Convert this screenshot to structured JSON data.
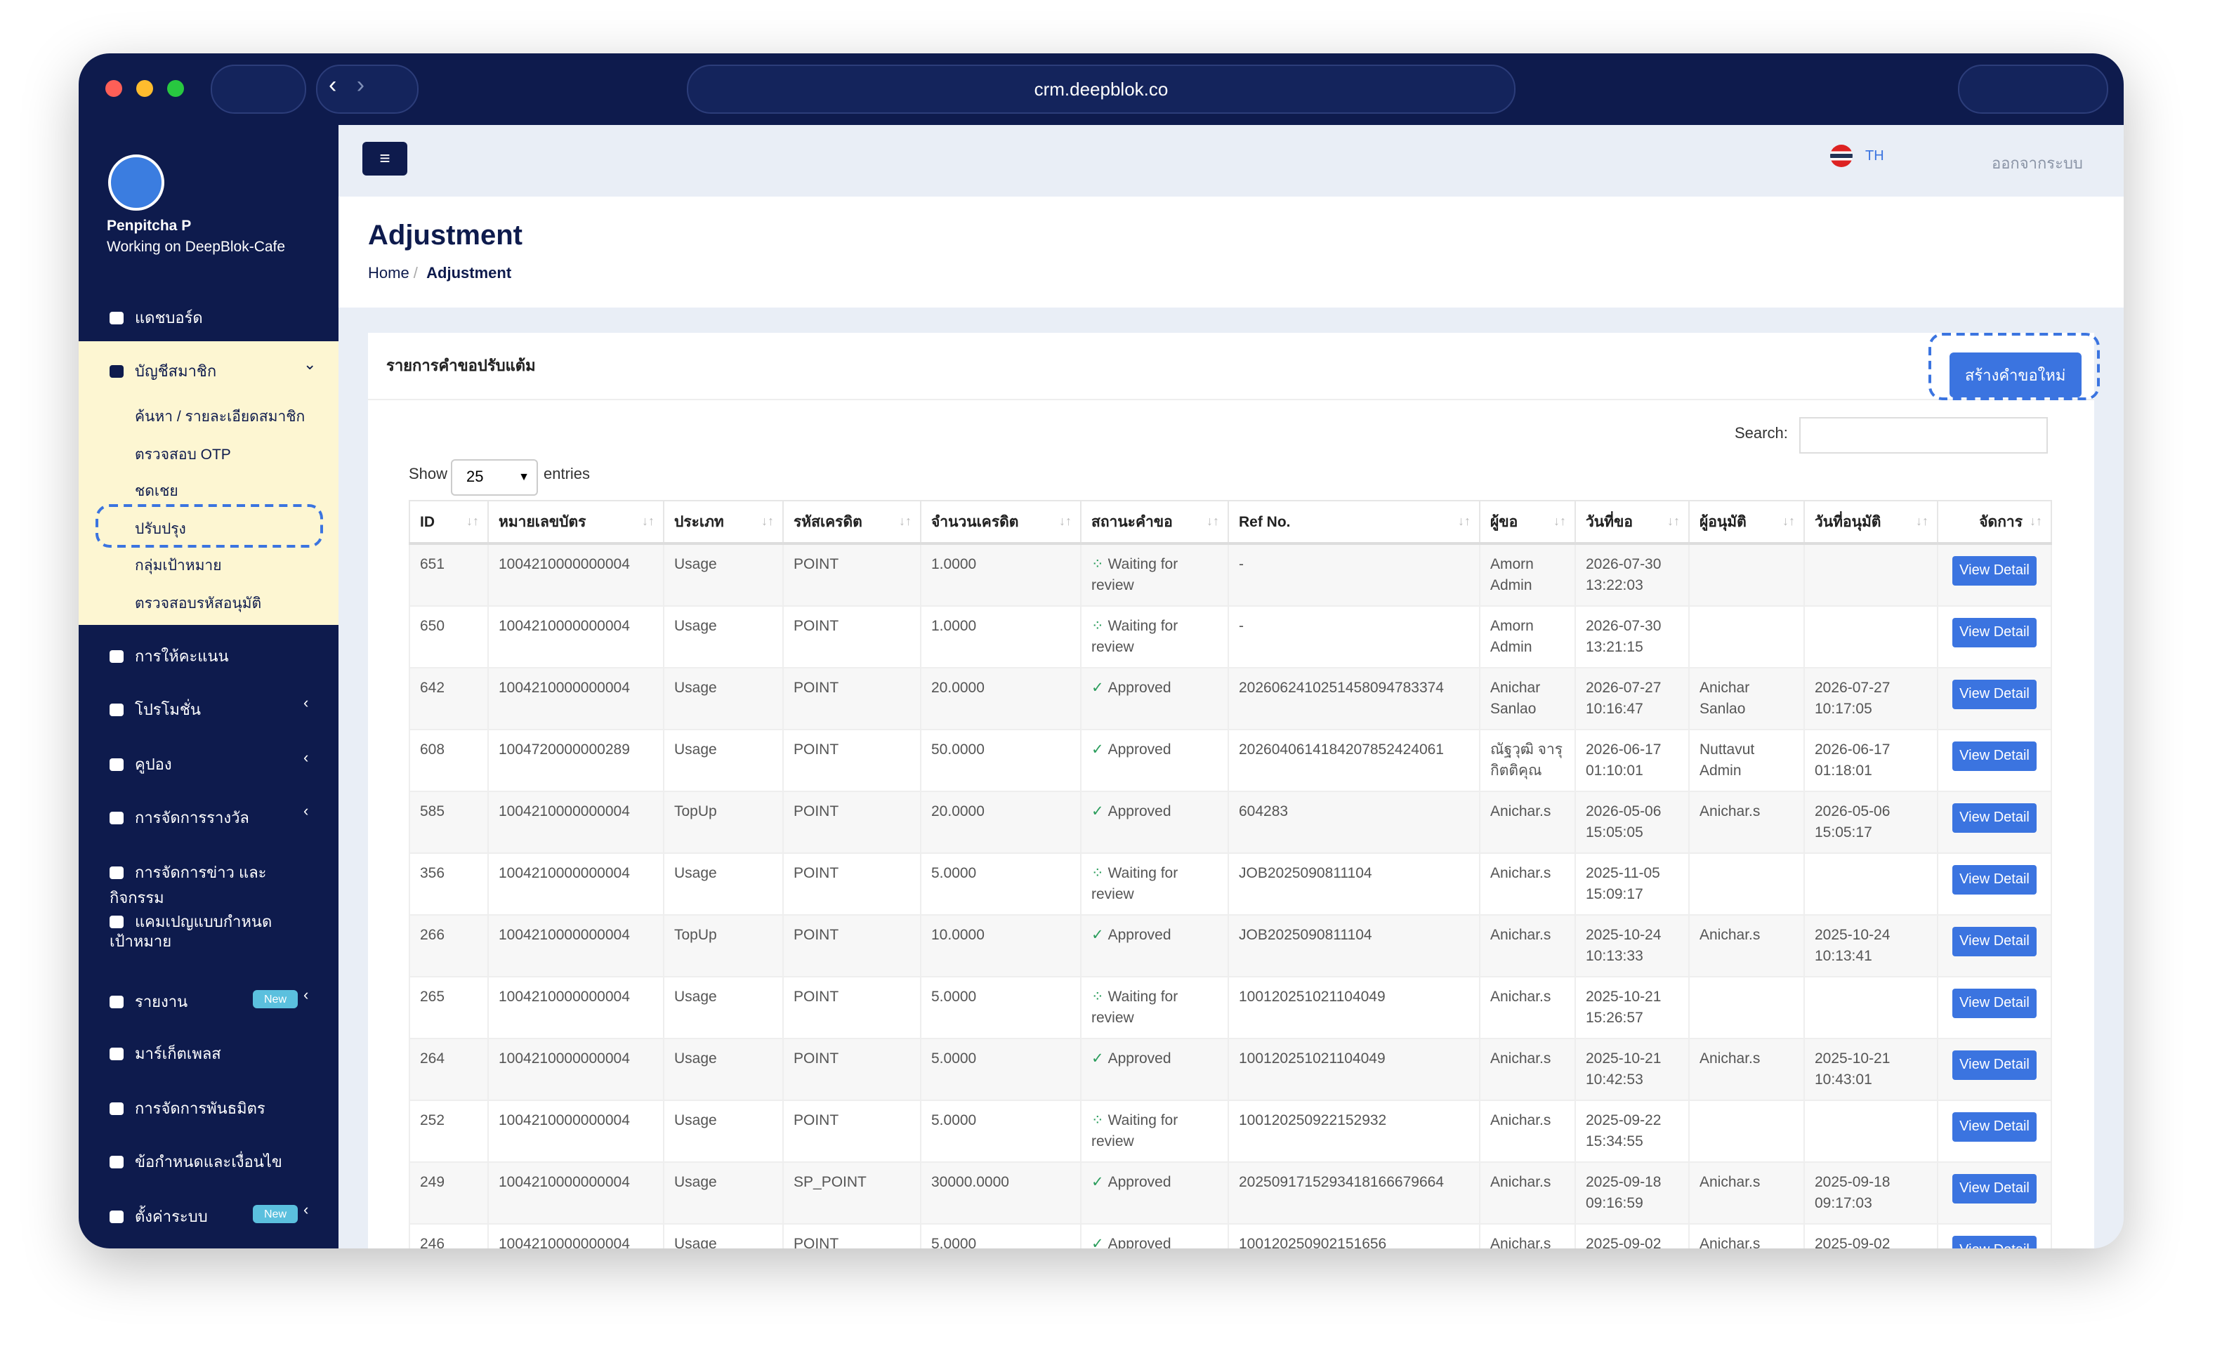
{
  "browser": {
    "url": "crm.deepblok.co"
  },
  "sidebar": {
    "user_name": "Penpitcha P",
    "workspace": "Working on DeepBlok-Cafe",
    "menu": [
      {
        "label": "แดชบอร์ด"
      },
      {
        "label": "บัญชีสมาชิก",
        "submenu": [
          "ค้นหา / รายละเอียดสมาชิก",
          "ตรวจสอบ OTP",
          "ชดเชย",
          "ปรับปรุง",
          "กลุ่มเป้าหมาย",
          "ตรวจสอบรหัสอนุมัติ"
        ]
      },
      {
        "label": "การให้คะแนน"
      },
      {
        "label": "โปรโมชั่น"
      },
      {
        "label": "คูปอง"
      },
      {
        "label": "การจัดการรางวัล"
      },
      {
        "label": "การจัดการข่าว และ กิจกรรม"
      },
      {
        "label": "แคมเปญแบบกำหนดเป้าหมาย"
      },
      {
        "label": "รายงาน",
        "badge": "New"
      },
      {
        "label": "มาร์เก็ตเพลส"
      },
      {
        "label": "การจัดการพันธมิตร"
      },
      {
        "label": "ข้อกำหนดและเงื่อนไข"
      },
      {
        "label": "ตั้งค่าระบบ",
        "badge": "New"
      }
    ]
  },
  "topbar": {
    "language": "TH",
    "logout": "ออกจากระบบ"
  },
  "header": {
    "title": "Adjustment",
    "breadcrumb": [
      "Home",
      "Adjustment"
    ]
  },
  "card": {
    "title": "รายการคำขอปรับแต้ม",
    "create_button": "สร้างคำขอใหม่",
    "search_label": "Search:",
    "show_label": "Show",
    "page_size": "25",
    "entries_label": "entries"
  },
  "table": {
    "columns": [
      "ID",
      "หมายเลขบัตร",
      "ประเภท",
      "รหัสเครดิต",
      "จำนวนเครดิต",
      "สถานะคำขอ",
      "Ref No.",
      "ผู้ขอ",
      "วันที่ขอ",
      "ผู้อนุมัติ",
      "วันที่อนุมัติ",
      "จัดการ"
    ],
    "action_label": "View Detail",
    "rows": [
      [
        "651",
        "1004210000000004",
        "Usage",
        "POINT",
        "1.0000",
        "Waiting for review",
        "-",
        "Amorn Admin",
        "2026-07-30 13:22:03",
        "",
        ""
      ],
      [
        "650",
        "1004210000000004",
        "Usage",
        "POINT",
        "1.0000",
        "Waiting for review",
        "-",
        "Amorn Admin",
        "2026-07-30 13:21:15",
        "",
        ""
      ],
      [
        "642",
        "1004210000000004",
        "Usage",
        "POINT",
        "20.0000",
        "Approved",
        "2026062410251458094783374",
        "Anichar Sanlao",
        "2026-07-27 10:16:47",
        "Anichar Sanlao",
        "2026-07-27 10:17:05"
      ],
      [
        "608",
        "1004720000000289",
        "Usage",
        "POINT",
        "50.0000",
        "Approved",
        "2026040614184207852424061",
        "ณัฐวุฒิ จารุกิตติคุณ",
        "2026-06-17 01:10:01",
        "Nuttavut Admin",
        "2026-06-17 01:18:01"
      ],
      [
        "585",
        "1004210000000004",
        "TopUp",
        "POINT",
        "20.0000",
        "Approved",
        "604283",
        "Anichar.s",
        "2026-05-06 15:05:05",
        "Anichar.s",
        "2026-05-06 15:05:17"
      ],
      [
        "356",
        "1004210000000004",
        "Usage",
        "POINT",
        "5.0000",
        "Waiting for review",
        "JOB2025090811104",
        "Anichar.s",
        "2025-11-05 15:09:17",
        "",
        ""
      ],
      [
        "266",
        "1004210000000004",
        "TopUp",
        "POINT",
        "10.0000",
        "Approved",
        "JOB2025090811104",
        "Anichar.s",
        "2025-10-24 10:13:33",
        "Anichar.s",
        "2025-10-24 10:13:41"
      ],
      [
        "265",
        "1004210000000004",
        "Usage",
        "POINT",
        "5.0000",
        "Waiting for review",
        "100120251021104049",
        "Anichar.s",
        "2025-10-21 15:26:57",
        "",
        ""
      ],
      [
        "264",
        "1004210000000004",
        "Usage",
        "POINT",
        "5.0000",
        "Approved",
        "100120251021104049",
        "Anichar.s",
        "2025-10-21 10:42:53",
        "Anichar.s",
        "2025-10-21 10:43:01"
      ],
      [
        "252",
        "1004210000000004",
        "Usage",
        "POINT",
        "5.0000",
        "Waiting for review",
        "100120250922152932",
        "Anichar.s",
        "2025-09-22 15:34:55",
        "",
        ""
      ],
      [
        "249",
        "1004210000000004",
        "Usage",
        "SP_POINT",
        "30000.0000",
        "Approved",
        "2025091715293418166679664",
        "Anichar.s",
        "2025-09-18 09:16:59",
        "Anichar.s",
        "2025-09-18 09:17:03"
      ],
      [
        "246",
        "1004210000000004",
        "Usage",
        "POINT",
        "5.0000",
        "Approved",
        "100120250902151656",
        "Anichar.s",
        "2025-09-02",
        "Anichar.s",
        "2025-09-02"
      ]
    ]
  }
}
